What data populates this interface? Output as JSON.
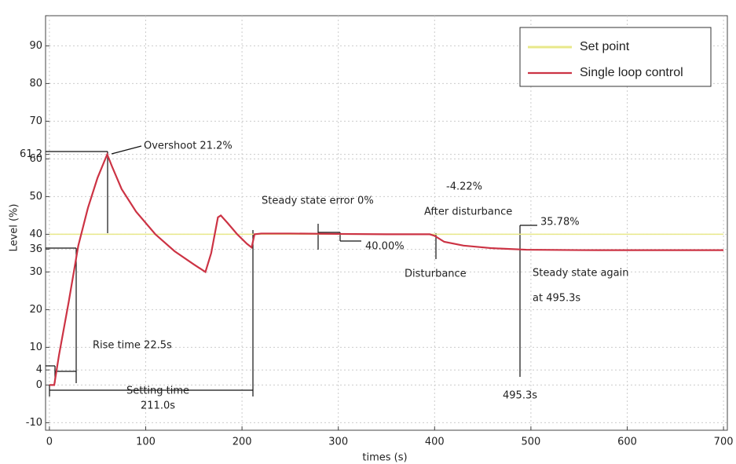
{
  "chart_data": {
    "type": "line",
    "x_label": "times (s)",
    "y_label": "Level (%)",
    "xlim": [
      -4,
      704
    ],
    "ylim": [
      -12,
      98
    ],
    "xticks": [
      0,
      100,
      200,
      300,
      400,
      500,
      600,
      700
    ],
    "yticks": [
      -10,
      0,
      4,
      10,
      20,
      30,
      36,
      40,
      50,
      60,
      61.2,
      70,
      80,
      90
    ],
    "grid": true,
    "legend": "upper right",
    "series": [
      {
        "name": "Set point",
        "color": "#e8e88a",
        "x": [
          0,
          700
        ],
        "values": [
          40,
          40
        ]
      },
      {
        "name": "Single loop control",
        "color": "#cc3344",
        "x": [
          0,
          5,
          10,
          20,
          30,
          40,
          50,
          60,
          65,
          75,
          90,
          110,
          130,
          150,
          162,
          168,
          175,
          178,
          185,
          195,
          205,
          210,
          213,
          220,
          250,
          300,
          350,
          395,
          400,
          410,
          430,
          460,
          495.3,
          550,
          600,
          700
        ],
        "values": [
          0,
          0,
          8,
          22,
          37,
          47,
          55,
          61.2,
          58,
          52,
          46,
          40,
          35.5,
          32,
          30,
          35,
          44.5,
          45,
          43,
          40,
          37.5,
          36.5,
          40,
          40.2,
          40.2,
          40.1,
          40,
          40,
          39.6,
          38,
          37,
          36.3,
          35.9,
          35.8,
          35.78,
          35.78
        ]
      }
    ],
    "annotations": [
      "Overshoot 21.2%",
      "Rise time 22.5s",
      "Setting time",
      "211.0s",
      "Steady state error 0%",
      "40.00%",
      "-4.22%",
      "After disturbance",
      "35.78%",
      "Disturbance",
      "Steady state again",
      "at 495.3s",
      "495.3s"
    ]
  }
}
